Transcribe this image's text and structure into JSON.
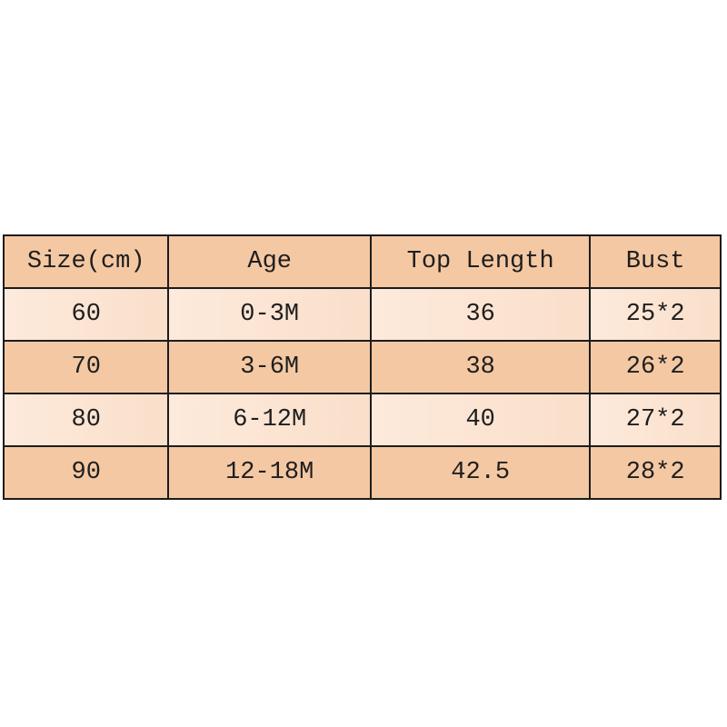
{
  "chart_data": {
    "type": "table",
    "title": "",
    "columns": [
      "Size(cm)",
      "Age",
      "Top Length",
      "Bust"
    ],
    "rows": [
      [
        "60",
        "0-3M",
        "36",
        "25*2"
      ],
      [
        "70",
        "3-6M",
        "38",
        "26*2"
      ],
      [
        "80",
        "6-12M",
        "40",
        "27*2"
      ],
      [
        "90",
        "12-18M",
        "42.5",
        "28*2"
      ]
    ]
  },
  "colors": {
    "page_bg": "#ffffff",
    "header_bg": "#f4c8a3",
    "row_dark_bg": "#f4c8a3",
    "row_light_bg": "#fdeadc",
    "row_light_bg2": "#fadfca",
    "border": "#1c1c1c",
    "text": "#1e1e1e"
  }
}
